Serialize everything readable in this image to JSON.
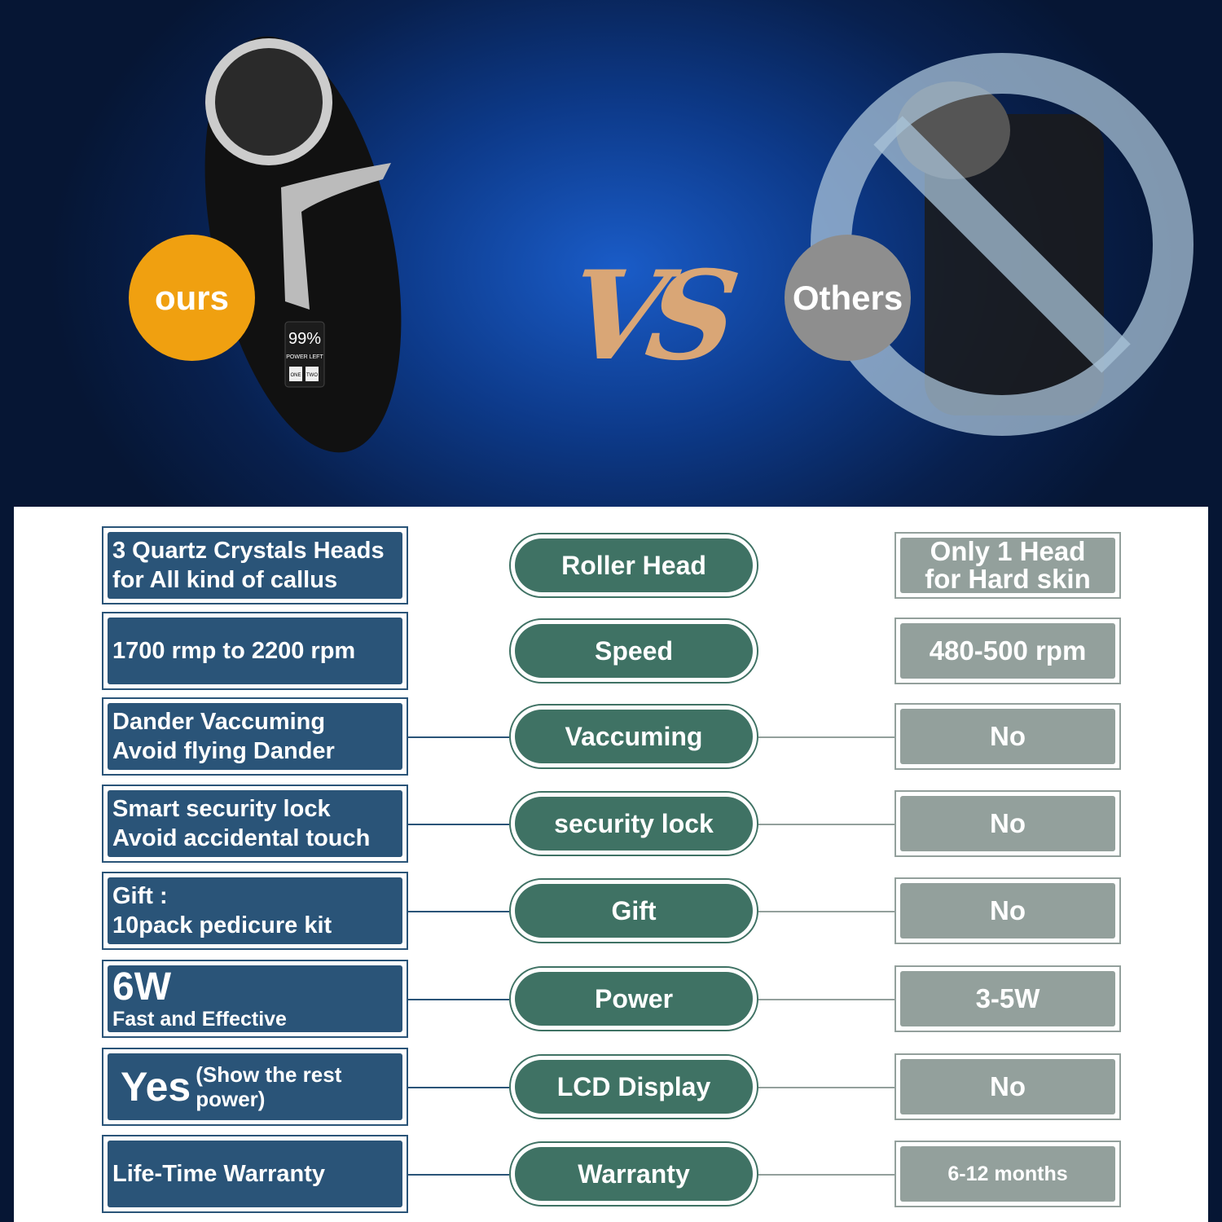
{
  "hero": {
    "ours_label": "ours",
    "vs_label": "VS",
    "others_label": "Others",
    "lcd_percent": "99%",
    "lcd_caption": "POWER LEFT",
    "lcd_buttons": [
      "ONE",
      "TWO"
    ]
  },
  "colors": {
    "ours": "#2a5478",
    "feature": "#3f7264",
    "others": "#93a09c",
    "ours_badge": "#f0a010",
    "others_badge": "#8e8e8e"
  },
  "rows": [
    {
      "ours": [
        "3 Quartz Crystals Heads",
        "for All kind of callus"
      ],
      "feature": "Roller Head",
      "others": [
        "Only 1 Head",
        "for Hard skin"
      ]
    },
    {
      "ours": [
        "1700 rmp to 2200 rpm"
      ],
      "feature": "Speed",
      "others": [
        "480-500 rpm"
      ]
    },
    {
      "ours": [
        "Dander Vaccuming",
        "Avoid flying Dander"
      ],
      "feature": "Vaccuming",
      "others": [
        "No"
      ]
    },
    {
      "ours": [
        "Smart security lock",
        "Avoid accidental touch"
      ],
      "feature": "security lock",
      "others": [
        "No"
      ]
    },
    {
      "ours": [
        "Gift :",
        "10pack pedicure kit"
      ],
      "feature": "Gift",
      "others": [
        "No"
      ]
    },
    {
      "ours": [
        "6W",
        "Fast and Effective"
      ],
      "feature": "Power",
      "others": [
        "3-5W"
      ]
    },
    {
      "ours": [
        "Yes",
        "(Show the rest power)"
      ],
      "feature": "LCD Display",
      "others": [
        "No"
      ]
    },
    {
      "ours": [
        "Life-Time Warranty"
      ],
      "feature": "Warranty",
      "others": [
        "6-12 months"
      ]
    }
  ]
}
